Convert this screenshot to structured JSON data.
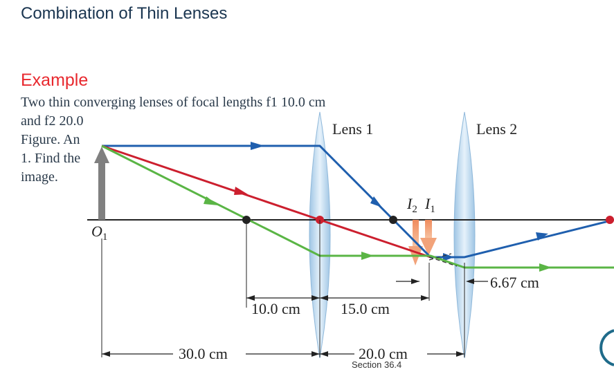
{
  "slide": {
    "title": "Combination of Thin Lenses",
    "example_heading": "Example",
    "problem_lines": [
      "Two thin converging lenses of focal lengths f1 10.0 cm",
      "and f2 20.0",
      "Figure. An",
      "1. Find the",
      "image."
    ],
    "footer": "Section 36.4"
  },
  "diagram": {
    "lens1_label": "Lens 1",
    "lens2_label": "Lens 2",
    "object_label": "O",
    "object_subscript": "1",
    "image2_label": "I",
    "image2_subscript": "2",
    "image1_label": "I",
    "image1_subscript": "1",
    "dimensions": {
      "d_10": "10.0 cm",
      "d_15": "15.0 cm",
      "d_667": "6.67 cm",
      "d_30": "30.0 cm",
      "d_20": "20.0 cm"
    },
    "colors": {
      "ray_blue": "#1f5fae",
      "ray_red": "#cc1f2e",
      "ray_green": "#5ab545",
      "lens_fill": "#a9cde8",
      "object_arrow": "#808080",
      "image_arrow": "#f2a37a",
      "axis": "#222222"
    }
  }
}
